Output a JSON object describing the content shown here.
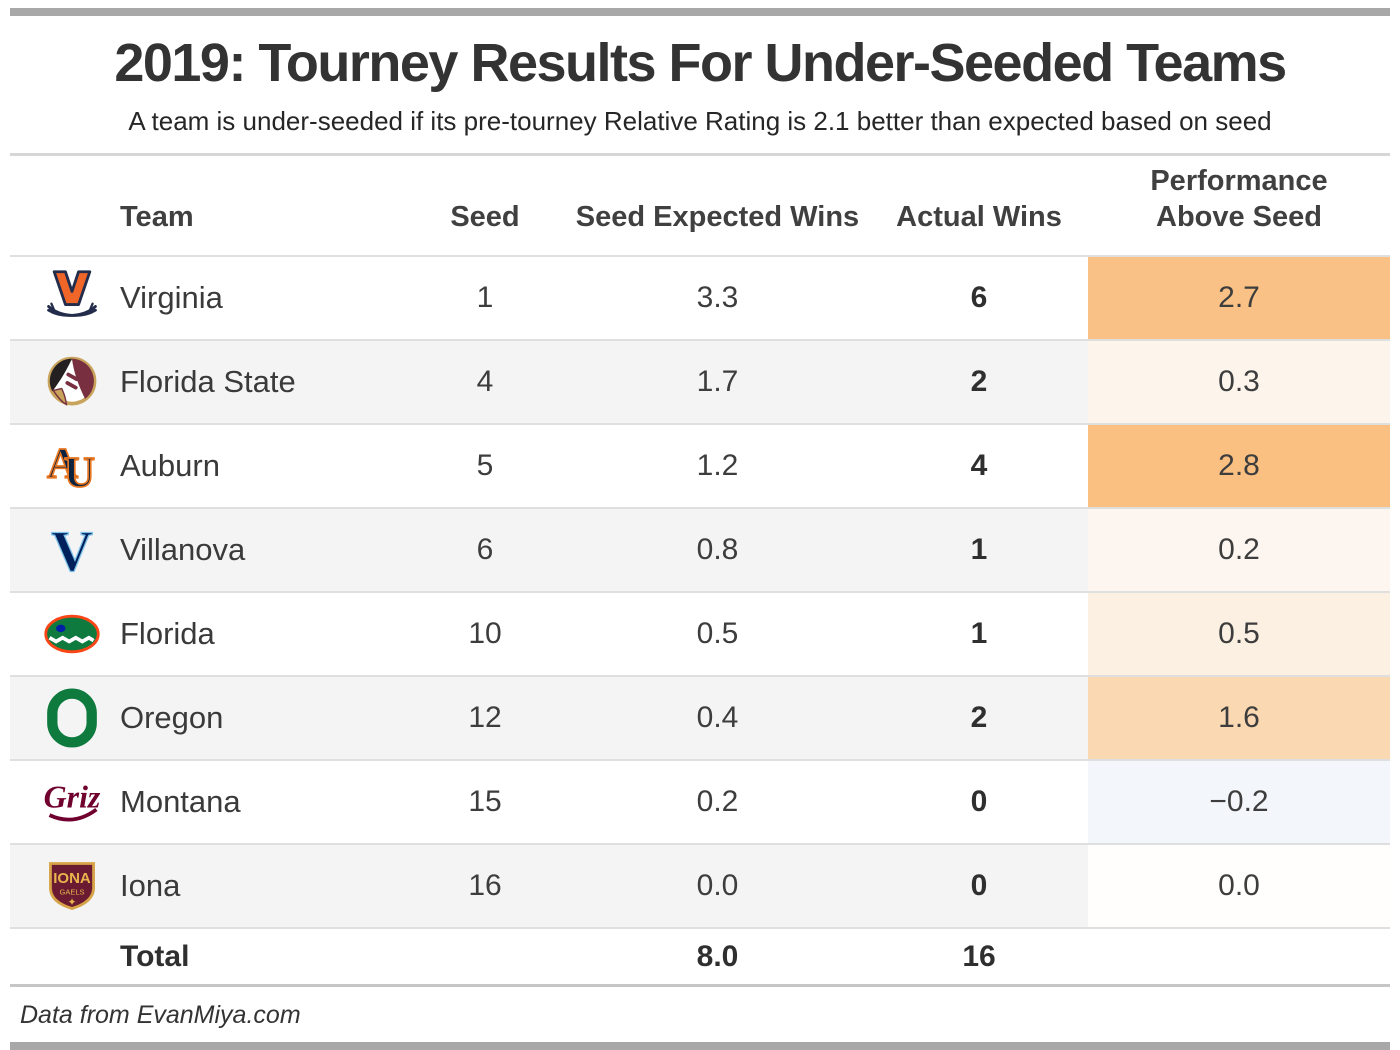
{
  "title": "2019: Tourney Results For Under-Seeded Teams",
  "subtitle": "A team is under-seeded if its pre-tourney Relative Rating is 2.1 better than expected based on seed",
  "source_note": "Data from EvanMiya.com",
  "columns": {
    "team": "Team",
    "seed": "Seed",
    "expected": "Seed Expected Wins",
    "actual": "Actual Wins",
    "performance": "Performance Above Seed"
  },
  "rows": [
    {
      "team": "Virginia",
      "logo_icon": "virginia-logo",
      "seed": "1",
      "expected": "3.3",
      "actual": "6",
      "performance": "2.7",
      "performance_bg": "#f9c185"
    },
    {
      "team": "Florida State",
      "logo_icon": "florida-state-logo",
      "seed": "4",
      "expected": "1.7",
      "actual": "2",
      "performance": "0.3",
      "performance_bg": "#fdf4ec"
    },
    {
      "team": "Auburn",
      "logo_icon": "auburn-logo",
      "seed": "5",
      "expected": "1.2",
      "actual": "4",
      "performance": "2.8",
      "performance_bg": "#f9c082"
    },
    {
      "team": "Villanova",
      "logo_icon": "villanova-logo",
      "seed": "6",
      "expected": "0.8",
      "actual": "1",
      "performance": "0.2",
      "performance_bg": "#fdf5ef"
    },
    {
      "team": "Florida",
      "logo_icon": "florida-logo",
      "seed": "10",
      "expected": "0.5",
      "actual": "1",
      "performance": "0.5",
      "performance_bg": "#fcf0e2"
    },
    {
      "team": "Oregon",
      "logo_icon": "oregon-logo",
      "seed": "12",
      "expected": "0.4",
      "actual": "2",
      "performance": "1.6",
      "performance_bg": "#fad9b2"
    },
    {
      "team": "Montana",
      "logo_icon": "montana-logo",
      "seed": "15",
      "expected": "0.2",
      "actual": "0",
      "performance": "−0.2",
      "performance_bg": "#f3f6fa"
    },
    {
      "team": "Iona",
      "logo_icon": "iona-logo",
      "seed": "16",
      "expected": "0.0",
      "actual": "0",
      "performance": "0.0",
      "performance_bg": "#fffefd"
    }
  ],
  "total_row": {
    "label": "Total",
    "expected": "8.0",
    "actual": "16"
  },
  "colors": {
    "accent_orange": "#f9c185",
    "negative_blue": "#f3f6fa",
    "stripe_gray": "#f4f4f4",
    "frame_bar_gray": "#a8a8a8"
  },
  "chart_data": {
    "type": "table",
    "title": "2019: Tourney Results For Under-Seeded Teams",
    "subtitle": "A team is under-seeded if its pre-tourney Relative Rating is 2.1 better than expected based on seed",
    "columns": [
      "Team",
      "Seed",
      "Seed Expected Wins",
      "Actual Wins",
      "Performance Above Seed"
    ],
    "rows": [
      [
        "Virginia",
        1,
        3.3,
        6,
        2.7
      ],
      [
        "Florida State",
        4,
        1.7,
        2,
        0.3
      ],
      [
        "Auburn",
        5,
        1.2,
        4,
        2.8
      ],
      [
        "Villanova",
        6,
        0.8,
        1,
        0.2
      ],
      [
        "Florida",
        10,
        0.5,
        1,
        0.5
      ],
      [
        "Oregon",
        12,
        0.4,
        2,
        1.6
      ],
      [
        "Montana",
        15,
        0.2,
        0,
        -0.2
      ],
      [
        "Iona",
        16,
        0.0,
        0,
        0.0
      ]
    ],
    "total": {
      "Seed Expected Wins": 8.0,
      "Actual Wins": 16
    },
    "cell_shading": "Performance Above Seed column shaded white-to-orange for positive values, light blue for negative",
    "annotations": [
      "Data from EvanMiya.com"
    ]
  }
}
